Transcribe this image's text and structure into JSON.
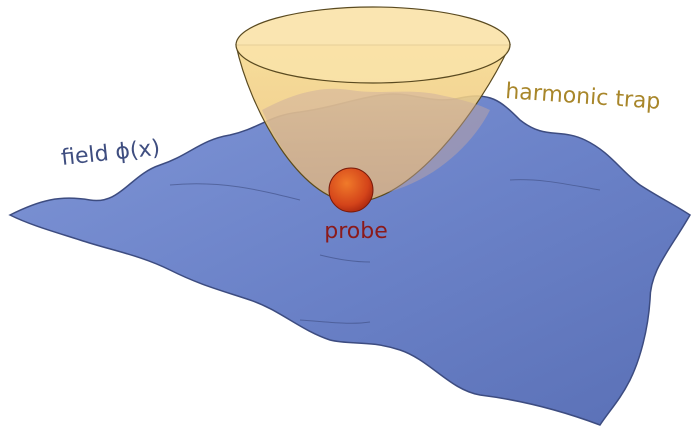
{
  "labels": {
    "trap": "harmonic trap",
    "field": "field ϕ(x)",
    "probe": "probe"
  }
}
